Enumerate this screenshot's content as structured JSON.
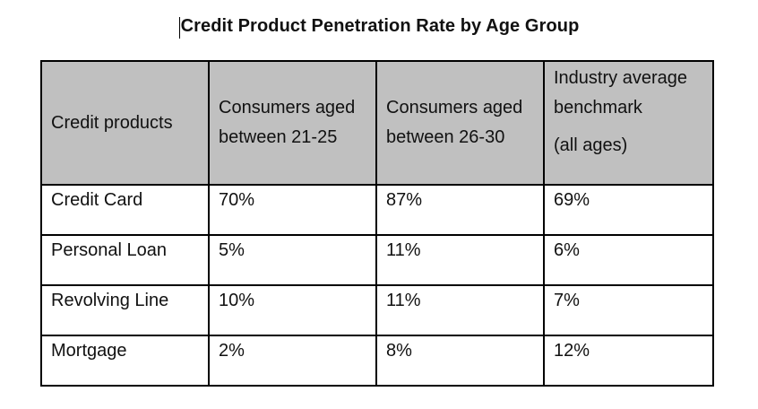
{
  "title": "Credit Product Penetration Rate by Age Group",
  "table": {
    "headers": {
      "product": "Credit products",
      "age_21_25": "Consumers aged between 21-25",
      "age_26_30": "Consumers aged between 26-30",
      "benchmark": "Industry average benchmark",
      "benchmark_note": "(all ages)"
    },
    "rows": [
      {
        "product": "Credit Card",
        "age_21_25": "70%",
        "age_26_30": "87%",
        "benchmark": "69%"
      },
      {
        "product": "Personal Loan",
        "age_21_25": "5%",
        "age_26_30": "11%",
        "benchmark": "6%"
      },
      {
        "product": "Revolving Line",
        "age_21_25": "10%",
        "age_26_30": "11%",
        "benchmark": "7%"
      },
      {
        "product": "Mortgage",
        "age_21_25": "2%",
        "age_26_30": "8%",
        "benchmark": "12%"
      }
    ]
  },
  "colors": {
    "header_background": "#c0c0c0",
    "border": "#000000"
  }
}
